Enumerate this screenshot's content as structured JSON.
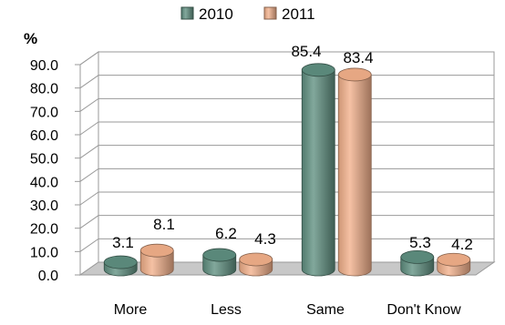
{
  "chart_data": {
    "type": "bar",
    "ylabel": "%",
    "ylim": [
      0,
      90
    ],
    "y_ticks": [
      "0.0",
      "10.0",
      "20.0",
      "30.0",
      "40.0",
      "50.0",
      "60.0",
      "70.0",
      "80.0",
      "90.0"
    ],
    "categories": [
      "More",
      "Less",
      "Same",
      "Don't Know"
    ],
    "series": [
      {
        "name": "2010",
        "values": [
          3.1,
          6.2,
          85.4,
          5.3
        ],
        "color": "#5f8f80"
      },
      {
        "name": "2011",
        "values": [
          8.1,
          4.3,
          83.4,
          4.2
        ],
        "color": "#f2b08a"
      }
    ],
    "data_labels": [
      "3.1",
      "8.1",
      "6.2",
      "4.3",
      "85.4",
      "83.4",
      "5.3",
      "4.2"
    ],
    "legend_position": "top",
    "grid": true,
    "style": "3d-cylinder"
  }
}
